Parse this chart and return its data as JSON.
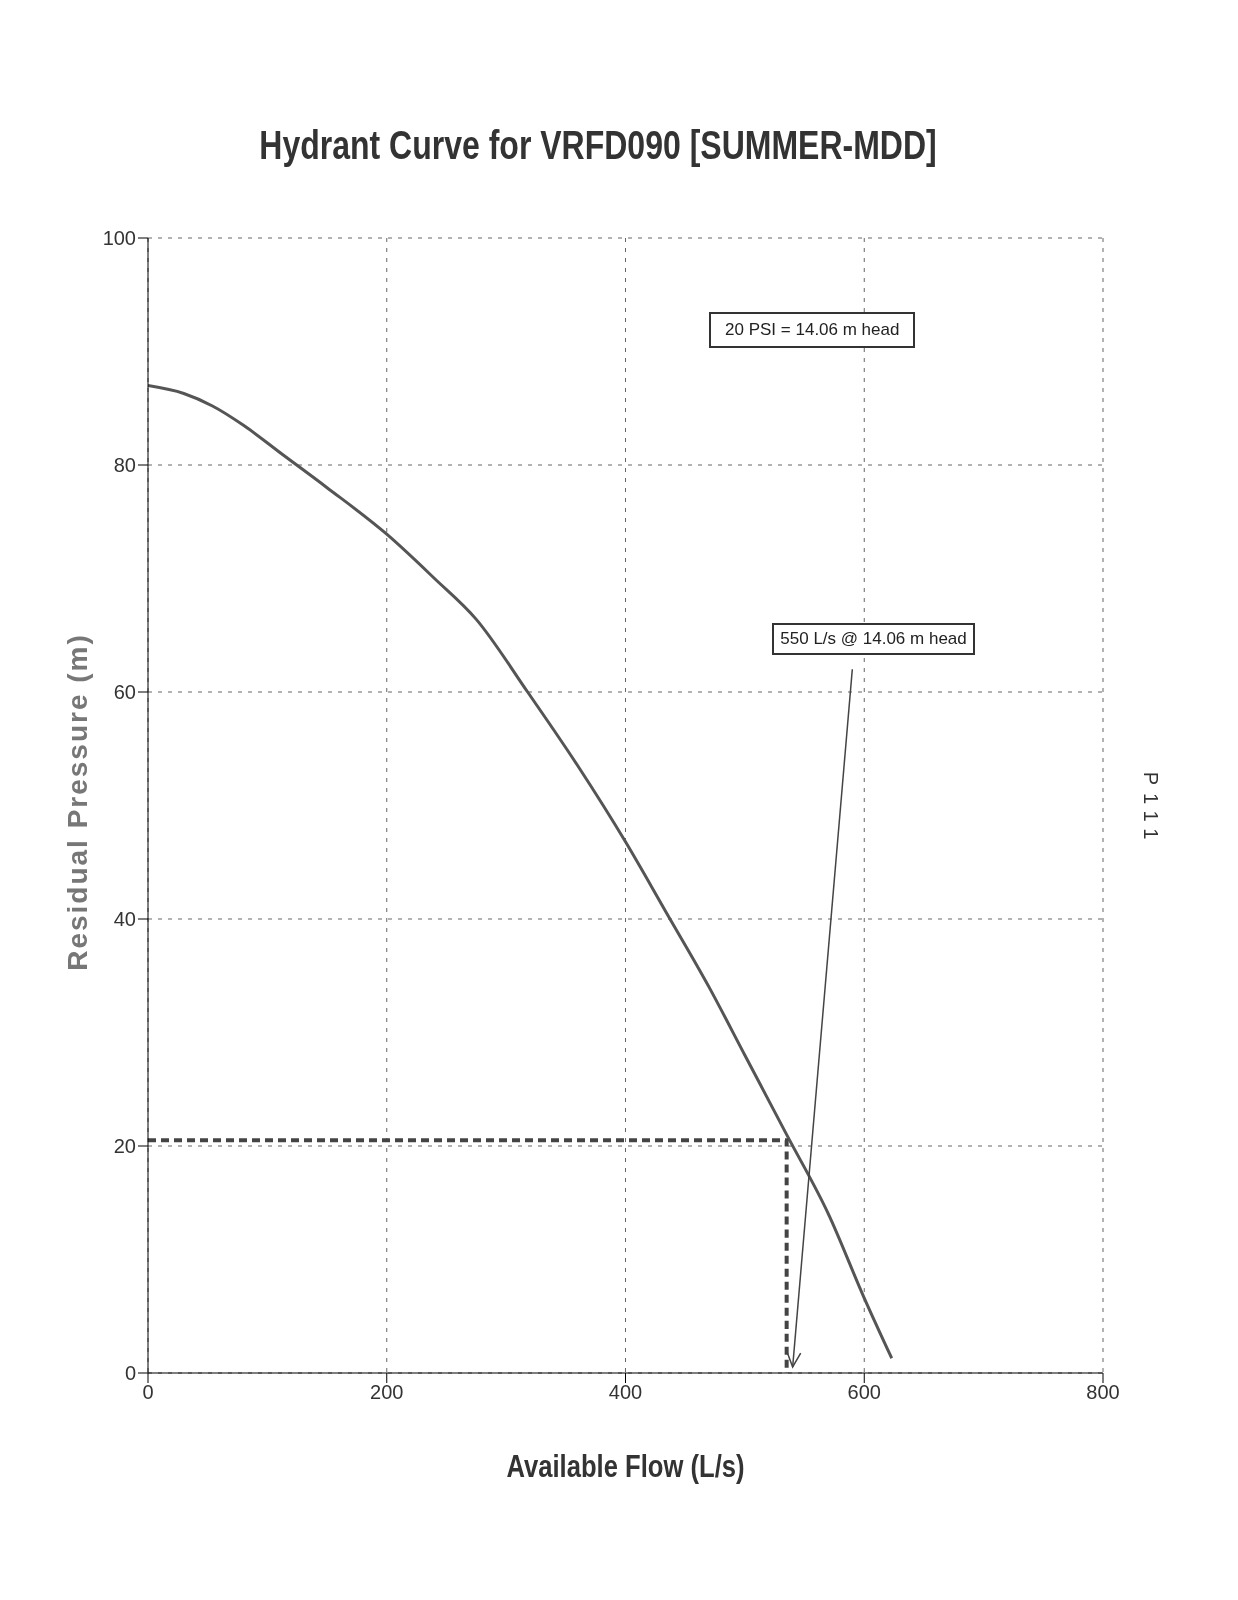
{
  "chart_data": {
    "type": "line",
    "title": "Hydrant Curve for VRFD090 [SUMMER-MDD]",
    "xlabel": "Available Flow (L/s)",
    "ylabel": "Residual Pressure (m)",
    "xlim": [
      0,
      800
    ],
    "xticks": [
      0,
      200,
      400,
      600,
      800
    ],
    "ylim": [
      0,
      100
    ],
    "yticks": [
      0,
      20,
      40,
      60,
      80,
      100
    ],
    "grid": true,
    "legend": false,
    "marker": "none",
    "series": [
      {
        "color": "#555555",
        "line_style": "solid",
        "x": [
          0,
          30,
          54,
          80,
          113,
          150,
          200,
          240,
          275,
          318,
          360,
          400,
          434,
          470,
          500,
          535,
          570,
          600,
          623
        ],
        "values": [
          87,
          86.3,
          85.2,
          83.5,
          80.9,
          78,
          73.9,
          70,
          66.4,
          60,
          53.5,
          46.8,
          40.6,
          34,
          28,
          21,
          14,
          6.6,
          1.3
        ]
      },
      {
        "color": "#444444",
        "line_style": "dashed",
        "x": [
          0,
          535,
          535
        ],
        "values": [
          20.5,
          20.5,
          0
        ]
      }
    ],
    "annotations": [
      "20 PSI = 14.06 m head",
      "550 L/s @ 14.06 m head",
      "P111"
    ]
  }
}
